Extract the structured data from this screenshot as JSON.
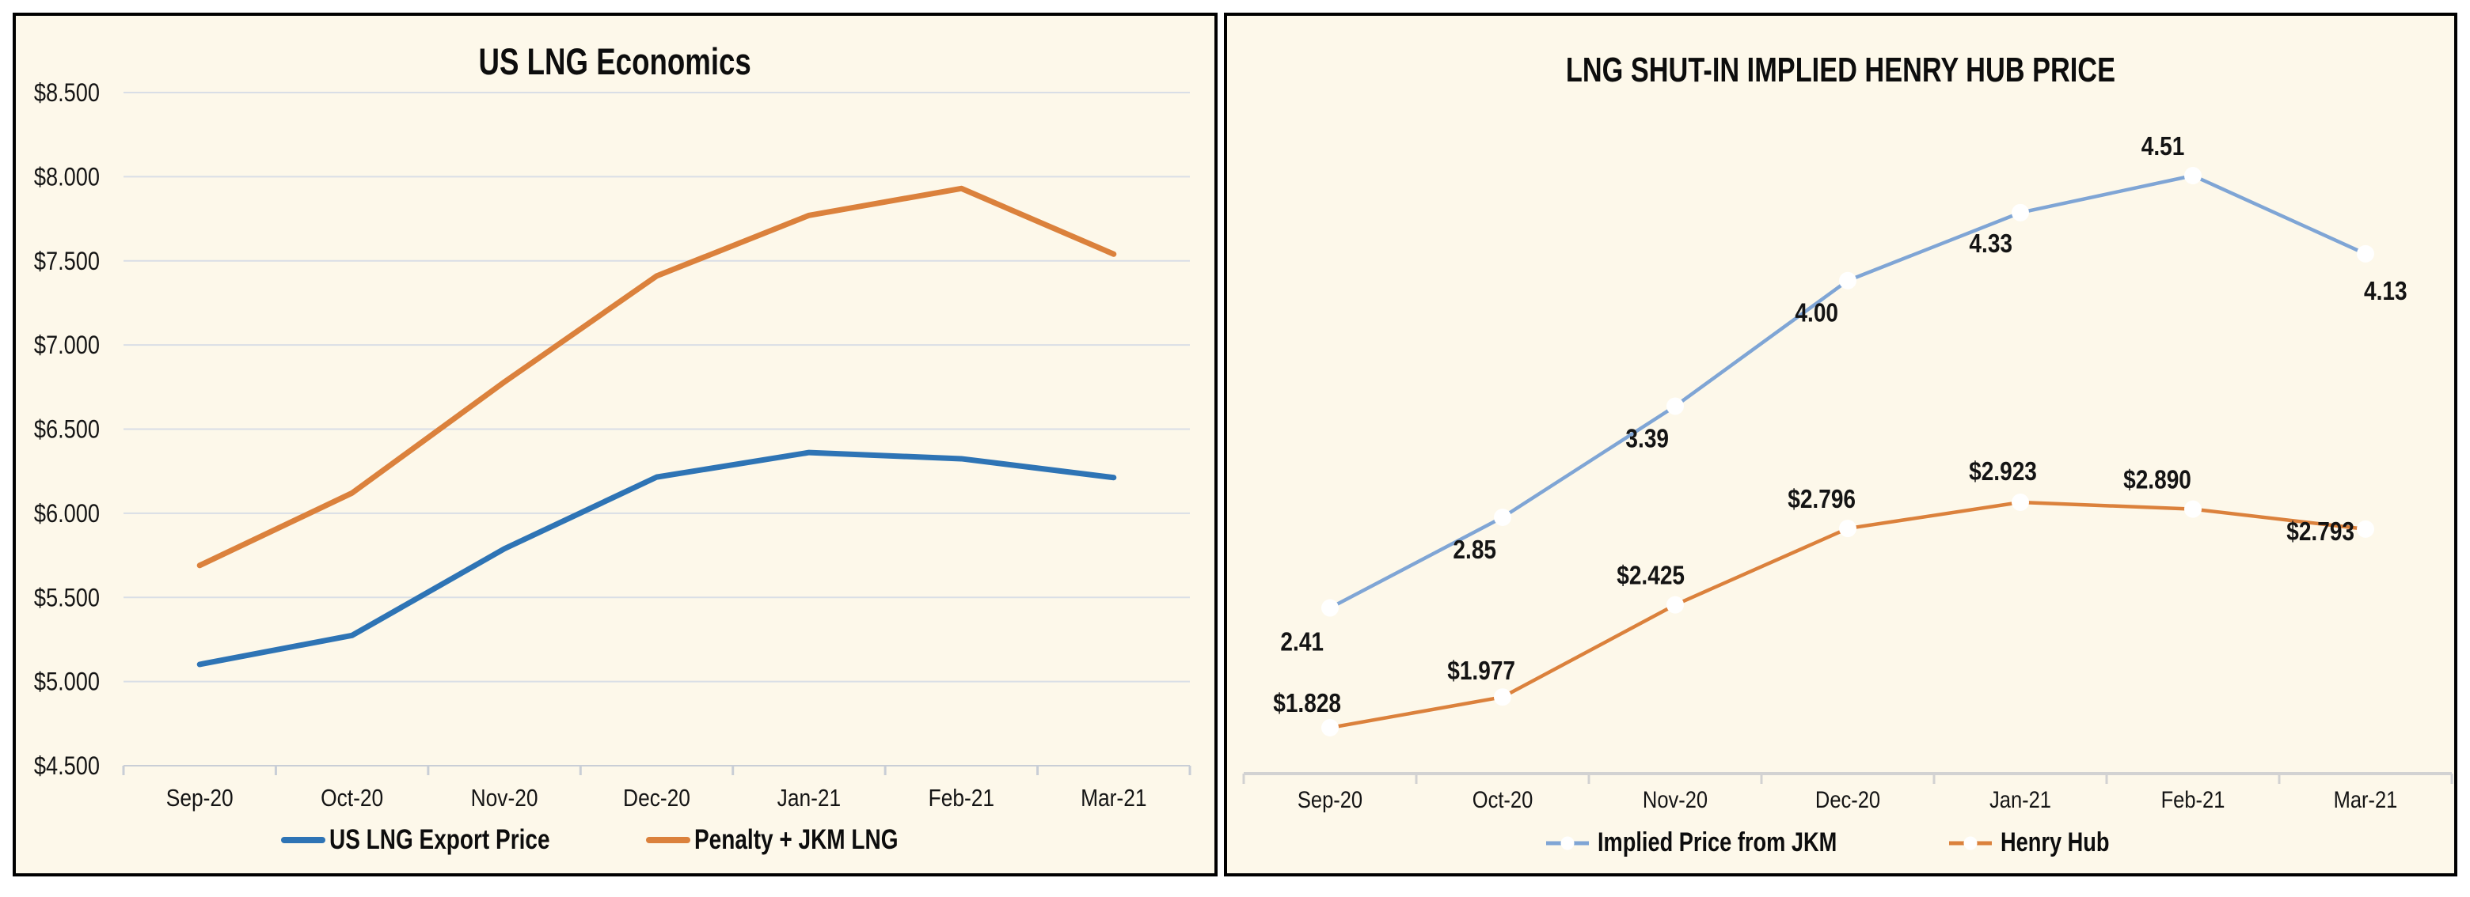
{
  "page": {
    "background": "#FFFFFF",
    "panel_background": "#FDF8EA",
    "panel_border_color": "#000000",
    "gridline_color": "#D9DEE6",
    "axis_color": "#CFCFCF",
    "text_color": "#0D0D0D"
  },
  "chart_data": [
    {
      "id": "us-lng-economics",
      "type": "line",
      "title": "US LNG Economics",
      "categories": [
        "Sep-20",
        "Oct-20",
        "Nov-20",
        "Dec-20",
        "Jan-21",
        "Feb-21",
        "Mar-21"
      ],
      "y_axis": {
        "min": 4.5,
        "max": 8.5,
        "step": 0.5,
        "prefix": "$",
        "grid": true,
        "tick_labels": [
          "$8.500",
          "$8.000",
          "$7.500",
          "$7.000",
          "$6.500",
          "$6.000",
          "$5.500",
          "$5.000",
          "$4.500"
        ]
      },
      "legend_position": "bottom",
      "series": [
        {
          "name": "US LNG Export Price",
          "color": "#2E74B5",
          "line_width": 7,
          "markers": false,
          "values": [
            5.102,
            5.274,
            5.789,
            6.215,
            6.361,
            6.324,
            6.212
          ]
        },
        {
          "name": "Penalty + JKM LNG",
          "color": "#DB813C",
          "line_width": 7,
          "markers": false,
          "values": [
            5.69,
            6.12,
            6.78,
            7.41,
            7.77,
            7.93,
            7.54
          ]
        }
      ]
    },
    {
      "id": "lng-shut-in-implied-henry-hub-price",
      "type": "line",
      "title": "LNG SHUT-IN IMPLIED HENRY HUB PRICE",
      "categories": [
        "Sep-20",
        "Oct-20",
        "Nov-20",
        "Dec-20",
        "Jan-21",
        "Feb-21",
        "Mar-21"
      ],
      "y_axis": {
        "min": 1.6,
        "max": 4.8,
        "grid": false,
        "tick_labels": []
      },
      "legend_position": "bottom",
      "series": [
        {
          "name": "Implied Price from JKM",
          "color": "#7FA5D5",
          "line_width": 4.5,
          "markers": true,
          "marker_color": "#FFFFFF",
          "values": [
            2.41,
            2.85,
            3.39,
            4.0,
            4.33,
            4.51,
            4.13
          ],
          "data_labels": [
            "2.41",
            "2.85",
            "3.39",
            "4.00",
            "4.33",
            "4.51",
            "4.13"
          ],
          "label_offsets": [
            [
              "end",
              -8,
              54
            ],
            [
              "end",
              -8,
              52
            ],
            [
              "end",
              -8,
              52
            ],
            [
              "end",
              -12,
              52
            ],
            [
              "end",
              -10,
              50
            ],
            [
              "middle",
              -38,
              -26
            ],
            [
              "start",
              -2,
              58
            ]
          ]
        },
        {
          "name": "Henry Hub",
          "color": "#DB813C",
          "line_width": 4.5,
          "markers": true,
          "marker_color": "#FFFFFF",
          "values": [
            1.828,
            1.977,
            2.425,
            2.796,
            2.923,
            2.89,
            2.793
          ],
          "data_labels": [
            "$1.828",
            "$1.977",
            "$2.425",
            "$2.796",
            "$2.923",
            "$2.890",
            "$2.793"
          ],
          "label_offsets": [
            [
              "end",
              14,
              -20
            ],
            [
              "end",
              16,
              -22
            ],
            [
              "end",
              12,
              -26
            ],
            [
              "end",
              10,
              -26
            ],
            [
              "middle",
              -22,
              -28
            ],
            [
              "middle",
              -45,
              -26
            ],
            [
              "end",
              -14,
              14
            ]
          ]
        }
      ]
    }
  ]
}
